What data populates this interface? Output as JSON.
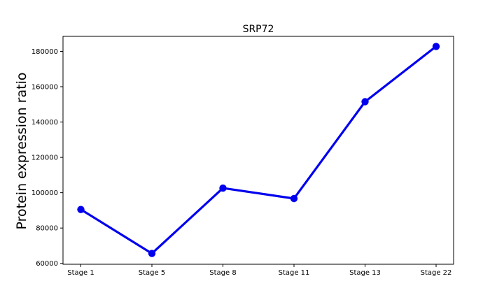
{
  "chart_data": {
    "type": "line",
    "title": "SRP72",
    "xlabel": "",
    "ylabel": "Protein expression ratio",
    "categories": [
      "Stage 1",
      "Stage 5",
      "Stage 8",
      "Stage 11",
      "Stage 13",
      "Stage 22"
    ],
    "series": [
      {
        "values": [
          90500,
          65600,
          102600,
          96700,
          151500,
          182800
        ],
        "color": "#0000ee"
      }
    ],
    "ylim": [
      59500,
      188500
    ],
    "yticks": [
      60000,
      80000,
      100000,
      120000,
      140000,
      160000,
      180000
    ],
    "ytick_labels": [
      "60000",
      "80000",
      "100000",
      "120000",
      "140000",
      "160000",
      "180000"
    ],
    "grid": false,
    "legend": "none"
  }
}
